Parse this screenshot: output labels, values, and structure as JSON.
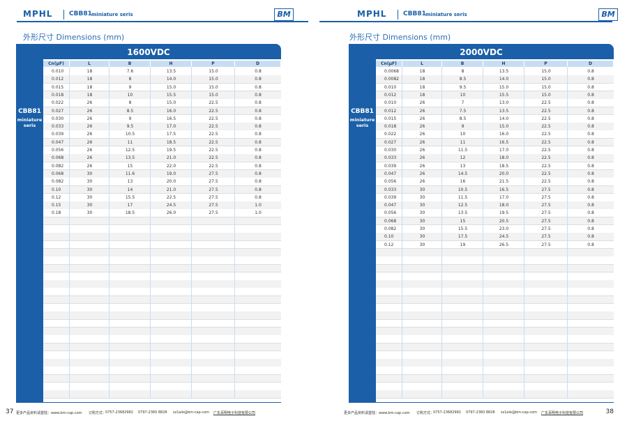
{
  "pages": [
    {
      "header": {
        "brand": "MPHL",
        "series": "CBB81",
        "series_note": "miniature seris",
        "logo": "BM"
      },
      "section_title": "外形尺寸 Dimensions (mm)",
      "table": {
        "title": "1600VDC",
        "side_label": "CBB81",
        "side_note": "miniature seris",
        "columns": [
          "Cn(μF)",
          "L",
          "B",
          "H",
          "P",
          "D"
        ],
        "rows": [
          [
            "0.010",
            "18",
            "7.6",
            "13.5",
            "15.0",
            "0.8"
          ],
          [
            "0.012",
            "18",
            "8",
            "14.0",
            "15.0",
            "0.8"
          ],
          [
            "0.015",
            "18",
            "9",
            "15.0",
            "15.0",
            "0.8"
          ],
          [
            "0.018",
            "18",
            "10",
            "15.5",
            "15.0",
            "0.8"
          ],
          [
            "0.022",
            "26",
            "8",
            "15.0",
            "22.5",
            "0.8"
          ],
          [
            "0.027",
            "26",
            "8.5",
            "16.0",
            "22.5",
            "0.8"
          ],
          [
            "0.030",
            "26",
            "9",
            "16.5",
            "22.5",
            "0.8"
          ],
          [
            "0.033",
            "26",
            "9.5",
            "17.0",
            "22.5",
            "0.8"
          ],
          [
            "0.039",
            "26",
            "10.5",
            "17.5",
            "22.5",
            "0.8"
          ],
          [
            "0.047",
            "26",
            "11",
            "18.5",
            "22.5",
            "0.8"
          ],
          [
            "0.056",
            "26",
            "12.5",
            "19.5",
            "22.5",
            "0.8"
          ],
          [
            "0.068",
            "26",
            "13.5",
            "21.0",
            "22.5",
            "0.8"
          ],
          [
            "0.082",
            "26",
            "15",
            "22.0",
            "22.5",
            "0.8"
          ],
          [
            "0.068",
            "30",
            "11.6",
            "19.0",
            "27.5",
            "0.8"
          ],
          [
            "0.082",
            "30",
            "13",
            "20.0",
            "27.5",
            "0.8"
          ],
          [
            "0.10",
            "30",
            "14",
            "21.0",
            "27.5",
            "0.8"
          ],
          [
            "0.12",
            "30",
            "15.5",
            "22.5",
            "27.5",
            "0.8"
          ],
          [
            "0.15",
            "30",
            "17",
            "24.5",
            "27.5",
            "1.0"
          ],
          [
            "0.18",
            "30",
            "18.5",
            "26.0",
            "27.5",
            "1.0"
          ]
        ]
      },
      "footer": {
        "site": "更多产品资料请登陆：www.bm-cap.com",
        "order": "订购方式：",
        "phone": "0757-23682982",
        "fax": "0797-2360 8828",
        "email": "sz1ale@bm-cap.com",
        "company": "广东百明电子科技有限公司"
      },
      "page_number": "37"
    },
    {
      "header": {
        "brand": "MPHL",
        "series": "CBB81",
        "series_note": "miniature seris",
        "logo": "BM"
      },
      "section_title": "外形尺寸 Dimensions (mm)",
      "table": {
        "title": "2000VDC",
        "side_label": "CBB81",
        "side_note": "miniature seris",
        "columns": [
          "Cn(μF)",
          "L",
          "B",
          "H",
          "P",
          "D"
        ],
        "rows": [
          [
            "0.0068",
            "18",
            "8",
            "13.5",
            "15.0",
            "0.8"
          ],
          [
            "0.0082",
            "18",
            "8.5",
            "14.0",
            "15.0",
            "0.8"
          ],
          [
            "0.010",
            "18",
            "9.5",
            "15.0",
            "15.0",
            "0.8"
          ],
          [
            "0.012",
            "18",
            "10",
            "15.5",
            "15.0",
            "0.8"
          ],
          [
            "0.010",
            "26",
            "7",
            "13.0",
            "22.5",
            "0.8"
          ],
          [
            "0.012",
            "26",
            "7.5",
            "13.5",
            "22.5",
            "0.8"
          ],
          [
            "0.015",
            "26",
            "8.5",
            "14.0",
            "22.5",
            "0.8"
          ],
          [
            "0.018",
            "26",
            "9",
            "15.0",
            "22.5",
            "0.8"
          ],
          [
            "0.022",
            "26",
            "10",
            "16.0",
            "22.5",
            "0.8"
          ],
          [
            "0.027",
            "26",
            "11",
            "16.5",
            "22.5",
            "0.8"
          ],
          [
            "0.030",
            "26",
            "11.5",
            "17.0",
            "22.5",
            "0.8"
          ],
          [
            "0.033",
            "26",
            "12",
            "18.0",
            "22.5",
            "0.8"
          ],
          [
            "0.039",
            "26",
            "13",
            "18.5",
            "22.5",
            "0.8"
          ],
          [
            "0.047",
            "26",
            "14.5",
            "20.0",
            "22.5",
            "0.8"
          ],
          [
            "0.056",
            "26",
            "16",
            "21.5",
            "22.5",
            "0.8"
          ],
          [
            "0.033",
            "30",
            "10.5",
            "16.5",
            "27.5",
            "0.8"
          ],
          [
            "0.039",
            "30",
            "11.5",
            "17.0",
            "27.5",
            "0.8"
          ],
          [
            "0.047",
            "30",
            "12.5",
            "18.0",
            "27.5",
            "0.8"
          ],
          [
            "0.056",
            "30",
            "13.5",
            "19.5",
            "27.5",
            "0.8"
          ],
          [
            "0.068",
            "30",
            "15",
            "20.5",
            "27.5",
            "0.8"
          ],
          [
            "0.082",
            "30",
            "15.5",
            "23.0",
            "27.5",
            "0.8"
          ],
          [
            "0.10",
            "30",
            "17.5",
            "24.5",
            "27.5",
            "0.8"
          ],
          [
            "0.12",
            "30",
            "19",
            "26.5",
            "27.5",
            "0.8"
          ]
        ]
      },
      "footer": {
        "site": "更多产品资料请登陆：www.bm-cap.com",
        "order": "订购方式：",
        "phone": "0757-23682982",
        "fax": "0797-2360 8828",
        "email": "sz1ale@bm-cap.com",
        "company": "广东百明电子科技有限公司"
      },
      "page_number": "38"
    }
  ]
}
